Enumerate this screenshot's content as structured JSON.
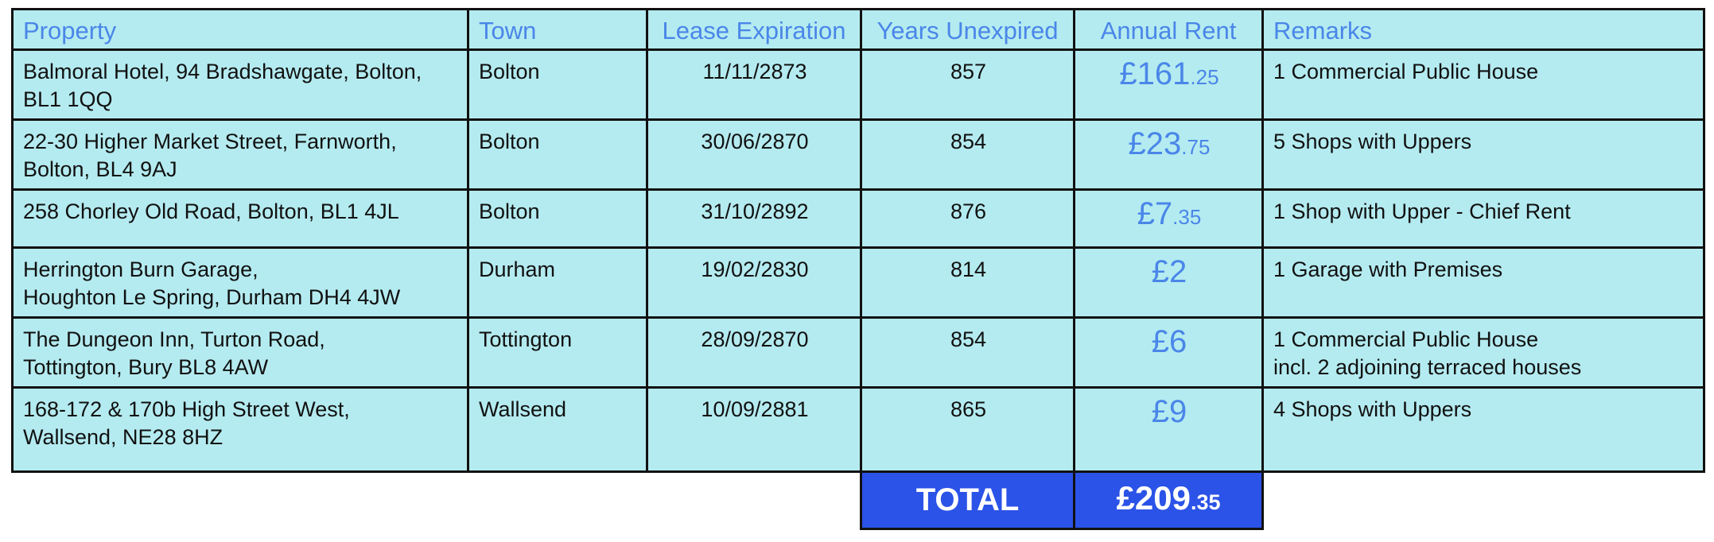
{
  "headers": {
    "property": "Property",
    "town": "Town",
    "lease_expiration": "Lease Expiration",
    "years_unexpired": "Years Unexpired",
    "annual_rent": "Annual Rent",
    "remarks": "Remarks"
  },
  "rows": [
    {
      "property": "Balmoral Hotel, 94 Bradshawgate, Bolton,\nBL1 1QQ",
      "town": "Bolton",
      "lease_expiration": "11/11/2873",
      "years_unexpired": "857",
      "rent_pounds": "£161",
      "rent_pence": ".25",
      "remarks": "1 Commercial Public House"
    },
    {
      "property": "22-30 Higher Market Street, Farnworth,\nBolton, BL4 9AJ",
      "town": "Bolton",
      "lease_expiration": "30/06/2870",
      "years_unexpired": "854",
      "rent_pounds": "£23",
      "rent_pence": ".75",
      "remarks": "5 Shops with Uppers"
    },
    {
      "property": "258 Chorley Old Road, Bolton, BL1 4JL",
      "town": "Bolton",
      "lease_expiration": "31/10/2892",
      "years_unexpired": "876",
      "rent_pounds": "£7",
      "rent_pence": ".35",
      "remarks": "1 Shop with Upper - Chief Rent"
    },
    {
      "property": "Herrington Burn Garage,\nHoughton Le Spring, Durham DH4 4JW",
      "town": "Durham",
      "lease_expiration": "19/02/2830",
      "years_unexpired": "814",
      "rent_pounds": "£2",
      "rent_pence": "",
      "remarks": "1 Garage with Premises"
    },
    {
      "property": "The Dungeon Inn, Turton Road,\nTottington, Bury BL8 4AW",
      "town": "Tottington",
      "lease_expiration": "28/09/2870",
      "years_unexpired": "854",
      "rent_pounds": "£6",
      "rent_pence": "",
      "remarks": "1 Commercial Public House\nincl. 2 adjoining terraced houses"
    },
    {
      "property": "168-172 & 170b High Street West,\nWallsend, NE28 8HZ",
      "town": "Wallsend",
      "lease_expiration": "10/09/2881",
      "years_unexpired": "865",
      "rent_pounds": "£9",
      "rent_pence": "",
      "remarks": "4 Shops with Uppers"
    }
  ],
  "total": {
    "label": "TOTAL",
    "pounds": "£209",
    "pence": ".35"
  },
  "colors": {
    "cell_bg": "#b4ebf0",
    "header_text": "#4a86e8",
    "total_bg": "#2b53e8"
  }
}
